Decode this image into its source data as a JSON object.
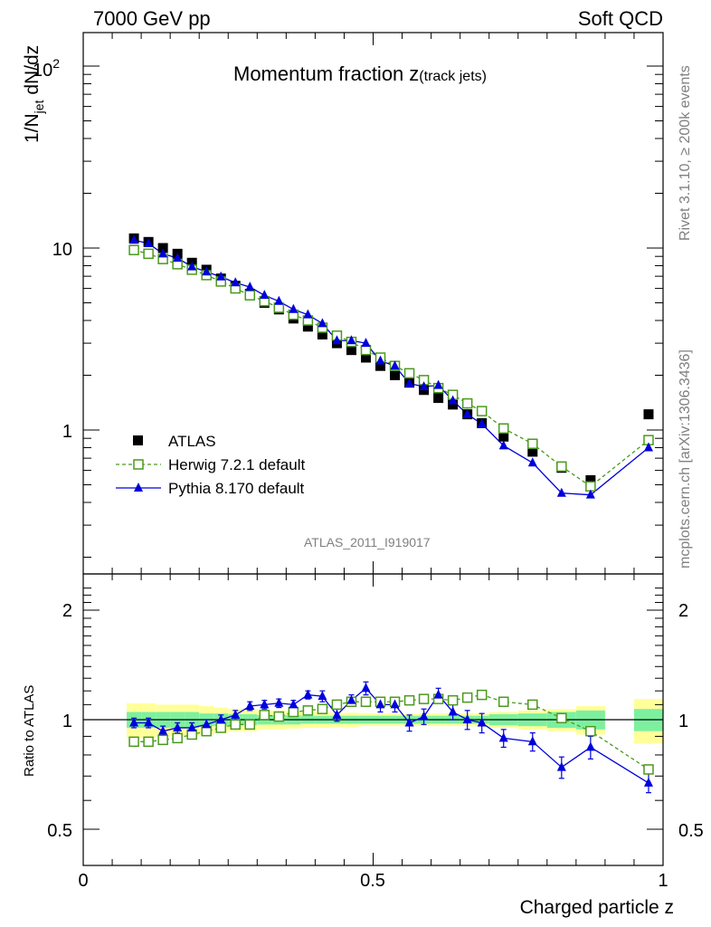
{
  "header": {
    "left": "7000 GeV pp",
    "right": "Soft QCD"
  },
  "side": {
    "rivet": "Rivet 3.1.10, ≥ 200k events",
    "mcplots": "mcplots.cern.ch [arXiv:1306.3436]"
  },
  "chart_data": {
    "type": "scatter",
    "title": "Momentum fraction",
    "title_var": "z",
    "title_sub": "(track jets)",
    "ylabel_main": "1/N",
    "ylabel_sub": "jet",
    "ylabel_tail": " dN/dz",
    "ylabel_ratio": "Ratio to ATLAS",
    "xlabel": "Charged particle z",
    "watermark": "ATLAS_2011_I919017",
    "yscale": "log",
    "ylim": [
      0.17,
      160
    ],
    "ratio_ylim": [
      0.42,
      2.35
    ],
    "xlim": [
      0,
      1
    ],
    "x_ticks": [
      "0",
      "0.5",
      "1"
    ],
    "y_ticks_main": {
      "base": "10",
      "exp": "2",
      "ten": "10",
      "one": "1"
    },
    "y_ticks_ratio": [
      "0.5",
      "1",
      "2"
    ],
    "legend": [
      "ATLAS",
      "Herwig 7.2.1 default",
      "Pythia 8.170 default"
    ],
    "colors": {
      "atlas": "#000000",
      "herwig": "#4a9a1c",
      "pythia": "#0000dd",
      "band_inner": "#7df0a0",
      "band_outer": "#ffff9a"
    },
    "x": [
      0.0875,
      0.1125,
      0.1375,
      0.1625,
      0.1875,
      0.2125,
      0.2375,
      0.2625,
      0.2875,
      0.3125,
      0.3375,
      0.3625,
      0.3875,
      0.4125,
      0.4375,
      0.4625,
      0.4875,
      0.5125,
      0.5375,
      0.5625,
      0.5875,
      0.6125,
      0.6375,
      0.6625,
      0.6875,
      0.725,
      0.775,
      0.825,
      0.875,
      0.975
    ],
    "x_bins": [
      [
        0.075,
        0.1
      ],
      [
        0.1,
        0.125
      ],
      [
        0.125,
        0.15
      ],
      [
        0.15,
        0.175
      ],
      [
        0.175,
        0.2
      ],
      [
        0.2,
        0.225
      ],
      [
        0.225,
        0.25
      ],
      [
        0.25,
        0.275
      ],
      [
        0.275,
        0.3
      ],
      [
        0.3,
        0.325
      ],
      [
        0.325,
        0.35
      ],
      [
        0.35,
        0.375
      ],
      [
        0.375,
        0.4
      ],
      [
        0.4,
        0.425
      ],
      [
        0.425,
        0.45
      ],
      [
        0.45,
        0.475
      ],
      [
        0.475,
        0.5
      ],
      [
        0.5,
        0.525
      ],
      [
        0.525,
        0.55
      ],
      [
        0.55,
        0.575
      ],
      [
        0.575,
        0.6
      ],
      [
        0.6,
        0.625
      ],
      [
        0.625,
        0.65
      ],
      [
        0.65,
        0.675
      ],
      [
        0.675,
        0.7
      ],
      [
        0.7,
        0.75
      ],
      [
        0.75,
        0.8
      ],
      [
        0.8,
        0.85
      ],
      [
        0.85,
        0.9
      ],
      [
        0.95,
        1.0
      ]
    ],
    "series": [
      {
        "name": "ATLAS",
        "values": [
          11.3,
          10.8,
          10.0,
          9.3,
          8.3,
          7.6,
          6.8,
          6.2,
          5.6,
          5.0,
          4.6,
          4.1,
          3.7,
          3.35,
          3.0,
          2.75,
          2.5,
          2.25,
          2.0,
          1.82,
          1.66,
          1.5,
          1.38,
          1.22,
          1.09,
          0.92,
          0.76,
          0.62,
          0.53,
          1.22
        ]
      },
      {
        "name": "Herwig 7.2.1 default",
        "values": [
          9.75,
          9.3,
          8.7,
          8.15,
          7.6,
          7.1,
          6.55,
          6.0,
          5.5,
          5.1,
          4.7,
          4.3,
          4.0,
          3.65,
          3.3,
          3.05,
          2.75,
          2.5,
          2.25,
          2.05,
          1.88,
          1.7,
          1.56,
          1.4,
          1.27,
          1.02,
          0.84,
          0.63,
          0.49,
          0.88
        ]
      },
      {
        "name": "Pythia 8.170 default",
        "values": [
          11.05,
          10.6,
          9.3,
          8.8,
          7.9,
          7.4,
          6.95,
          6.45,
          6.1,
          5.5,
          5.1,
          4.6,
          4.3,
          3.85,
          3.1,
          3.1,
          3.0,
          2.4,
          2.25,
          1.8,
          1.73,
          1.76,
          1.45,
          1.22,
          1.08,
          0.82,
          0.66,
          0.45,
          0.44,
          0.8
        ]
      }
    ],
    "ratio": {
      "herwig": [
        0.87,
        0.87,
        0.88,
        0.89,
        0.91,
        0.93,
        0.95,
        0.97,
        0.97,
        1.03,
        1.02,
        1.05,
        1.06,
        1.07,
        1.1,
        1.12,
        1.12,
        1.12,
        1.12,
        1.13,
        1.14,
        1.14,
        1.13,
        1.15,
        1.17,
        1.12,
        1.1,
        1.01,
        0.93,
        0.73
      ],
      "pythia": [
        0.98,
        0.98,
        0.93,
        0.95,
        0.95,
        0.97,
        1.0,
        1.03,
        1.09,
        1.1,
        1.11,
        1.1,
        1.17,
        1.16,
        1.03,
        1.13,
        1.22,
        1.1,
        1.1,
        0.98,
        1.02,
        1.17,
        1.05,
        1.0,
        0.98,
        0.89,
        0.87,
        0.74,
        0.84,
        0.67
      ],
      "pythia_err": [
        0.03,
        0.03,
        0.03,
        0.03,
        0.03,
        0.03,
        0.03,
        0.03,
        0.03,
        0.03,
        0.03,
        0.03,
        0.03,
        0.04,
        0.04,
        0.04,
        0.05,
        0.05,
        0.05,
        0.05,
        0.05,
        0.05,
        0.05,
        0.06,
        0.06,
        0.05,
        0.05,
        0.05,
        0.06,
        0.04
      ],
      "band_inner": [
        0.05,
        0.05,
        0.05,
        0.05,
        0.05,
        0.04,
        0.04,
        0.035,
        0.035,
        0.03,
        0.03,
        0.03,
        0.025,
        0.025,
        0.025,
        0.025,
        0.025,
        0.025,
        0.025,
        0.025,
        0.025,
        0.025,
        0.025,
        0.025,
        0.025,
        0.035,
        0.04,
        0.05,
        0.06,
        0.07
      ],
      "band_outer": [
        0.11,
        0.11,
        0.1,
        0.1,
        0.1,
        0.09,
        0.08,
        0.07,
        0.07,
        0.06,
        0.06,
        0.055,
        0.05,
        0.05,
        0.045,
        0.045,
        0.04,
        0.04,
        0.04,
        0.04,
        0.04,
        0.04,
        0.04,
        0.04,
        0.04,
        0.05,
        0.06,
        0.07,
        0.09,
        0.14
      ]
    }
  }
}
